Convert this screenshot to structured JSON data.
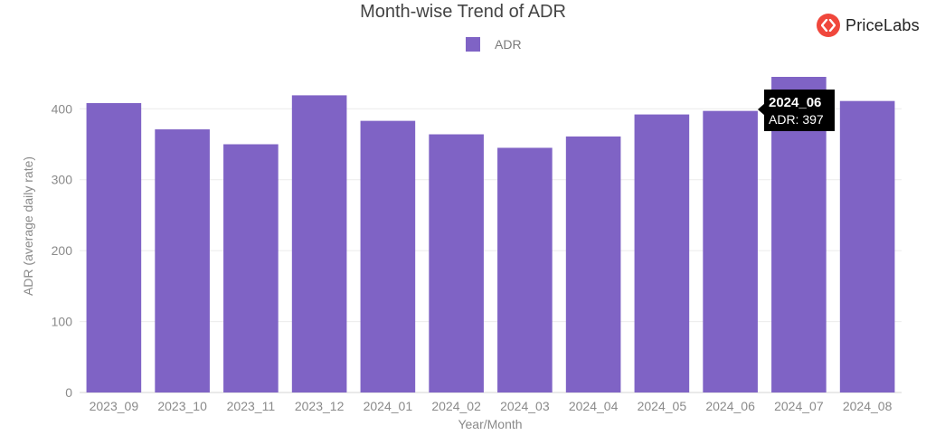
{
  "logo": {
    "text": "PriceLabs",
    "icon": "pricelabs-logo-icon",
    "color": "#f0473c"
  },
  "chart_data": {
    "type": "bar",
    "title": "Month-wise Trend of ADR",
    "xlabel": "Year/Month",
    "ylabel": "ADR (average daily rate)",
    "ylim": [
      0,
      445
    ],
    "yticks": [
      0,
      100,
      200,
      300,
      400
    ],
    "grid": true,
    "legend": {
      "position": "top-center",
      "entries": [
        "ADR"
      ]
    },
    "categories": [
      "2023_09",
      "2023_10",
      "2023_11",
      "2023_12",
      "2024_01",
      "2024_02",
      "2024_03",
      "2024_04",
      "2024_05",
      "2024_06",
      "2024_07",
      "2024_08"
    ],
    "series": [
      {
        "name": "ADR",
        "color": "#7f63c5",
        "values": [
          408,
          371,
          350,
          419,
          383,
          364,
          345,
          361,
          392,
          397,
          445,
          411
        ]
      }
    ],
    "tooltip": {
      "category": "2024_06",
      "title": "2024_06",
      "text": "ADR: 397"
    }
  }
}
